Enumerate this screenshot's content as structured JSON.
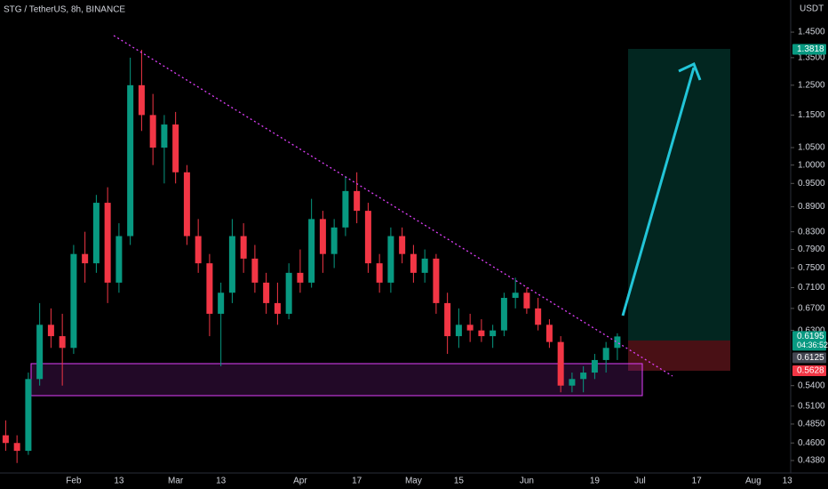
{
  "chart_data": {
    "type": "candlestick",
    "title": "STG / TetherUS, 8h, BINANCE",
    "y_axis_label": "USDT",
    "log_scale": true,
    "grid": false,
    "up_color": "#089981",
    "down_color": "#f23645",
    "categories": [
      null,
      null,
      null,
      null,
      null,
      null,
      "Feb",
      null,
      null,
      null,
      "13",
      null,
      null,
      null,
      null,
      "Mar",
      null,
      null,
      null,
      "13",
      null,
      null,
      null,
      null,
      null,
      null,
      "Apr",
      null,
      null,
      null,
      null,
      "17",
      null,
      null,
      null,
      null,
      "May",
      null,
      null,
      null,
      "15",
      null,
      null,
      null,
      null,
      null,
      "Jun",
      null,
      null,
      null,
      null,
      null,
      "19",
      null,
      null,
      null,
      "Jul",
      null,
      null,
      null,
      null,
      "17",
      null,
      null,
      null,
      null,
      "Aug",
      null,
      null,
      "13"
    ],
    "open": [
      0.47,
      0.46,
      0.45,
      0.55,
      0.64,
      0.62,
      0.6,
      0.78,
      0.76,
      0.9,
      0.72,
      0.82,
      1.25,
      1.15,
      1.05,
      1.12,
      0.98,
      0.82,
      0.76,
      0.66,
      0.7,
      0.82,
      0.77,
      0.72,
      0.68,
      0.66,
      0.74,
      0.72,
      0.86,
      0.78,
      0.84,
      0.93,
      0.88,
      0.76,
      0.72,
      0.82,
      0.78,
      0.74,
      0.77,
      0.68,
      0.62,
      0.64,
      0.63,
      0.62,
      0.63,
      0.69,
      0.7,
      0.67,
      0.64,
      0.61,
      0.54,
      0.55,
      0.56,
      0.58,
      0.6,
      null,
      null,
      null,
      null,
      null,
      null,
      null,
      null,
      null,
      null,
      null,
      null,
      null,
      null,
      null
    ],
    "high": [
      0.49,
      0.47,
      0.56,
      0.68,
      0.67,
      0.66,
      0.8,
      0.83,
      0.92,
      0.94,
      0.85,
      1.35,
      1.38,
      1.22,
      1.15,
      1.16,
      1.0,
      0.86,
      0.78,
      0.72,
      0.86,
      0.85,
      0.8,
      0.74,
      0.72,
      0.76,
      0.79,
      0.91,
      0.88,
      0.86,
      0.97,
      0.98,
      0.9,
      0.78,
      0.84,
      0.84,
      0.8,
      0.79,
      0.78,
      0.7,
      0.67,
      0.66,
      0.65,
      0.64,
      0.7,
      0.73,
      0.71,
      0.69,
      0.65,
      0.62,
      0.56,
      0.57,
      0.59,
      0.61,
      0.625,
      null,
      null,
      null,
      null,
      null,
      null,
      null,
      null,
      null,
      null,
      null,
      null,
      null,
      null,
      null
    ],
    "low": [
      0.45,
      0.435,
      0.445,
      0.54,
      0.6,
      0.54,
      0.59,
      0.72,
      0.74,
      0.68,
      0.7,
      0.8,
      1.1,
      1.0,
      0.95,
      0.95,
      0.8,
      0.74,
      0.62,
      0.57,
      0.68,
      0.74,
      0.7,
      0.66,
      0.64,
      0.65,
      0.7,
      0.71,
      0.74,
      0.75,
      0.82,
      0.85,
      0.74,
      0.7,
      0.7,
      0.76,
      0.72,
      0.72,
      0.66,
      0.59,
      0.6,
      0.61,
      0.61,
      0.6,
      0.62,
      0.67,
      0.66,
      0.63,
      0.6,
      0.53,
      0.53,
      0.53,
      0.55,
      0.56,
      0.58,
      null,
      null,
      null,
      null,
      null,
      null,
      null,
      null,
      null,
      null,
      null,
      null,
      null,
      null,
      null
    ],
    "close": [
      0.46,
      0.45,
      0.55,
      0.64,
      0.62,
      0.6,
      0.78,
      0.76,
      0.9,
      0.72,
      0.82,
      1.25,
      1.15,
      1.05,
      1.12,
      0.98,
      0.82,
      0.76,
      0.66,
      0.7,
      0.82,
      0.77,
      0.72,
      0.68,
      0.66,
      0.74,
      0.72,
      0.86,
      0.78,
      0.84,
      0.93,
      0.88,
      0.76,
      0.72,
      0.82,
      0.78,
      0.74,
      0.77,
      0.68,
      0.62,
      0.64,
      0.63,
      0.62,
      0.63,
      0.69,
      0.7,
      0.67,
      0.64,
      0.61,
      0.54,
      0.55,
      0.56,
      0.58,
      0.6,
      0.6195,
      null,
      null,
      null,
      null,
      null,
      null,
      null,
      null,
      null,
      null,
      null,
      null,
      null,
      null,
      null
    ],
    "ylim": [
      0.423,
      1.586
    ],
    "yticks": [
      {
        "value": 0.438,
        "label": "0.4380"
      },
      {
        "value": 0.46,
        "label": "0.4600"
      },
      {
        "value": 0.485,
        "label": "0.4850"
      },
      {
        "value": 0.51,
        "label": "0.5100"
      },
      {
        "value": 0.54,
        "label": "0.5400"
      },
      {
        "value": 0.63,
        "label": "0.6300"
      },
      {
        "value": 0.67,
        "label": "0.6700"
      },
      {
        "value": 0.71,
        "label": "0.7100"
      },
      {
        "value": 0.75,
        "label": "0.7500"
      },
      {
        "value": 0.79,
        "label": "0.7900"
      },
      {
        "value": 0.83,
        "label": "0.8300"
      },
      {
        "value": 0.89,
        "label": "0.8900"
      },
      {
        "value": 0.95,
        "label": "0.9500"
      },
      {
        "value": 1.0,
        "label": "1.0000"
      },
      {
        "value": 1.05,
        "label": "1.0500"
      },
      {
        "value": 1.15,
        "label": "1.1500"
      },
      {
        "value": 1.25,
        "label": "1.2500"
      },
      {
        "value": 1.35,
        "label": "1.3500"
      },
      {
        "value": 1.45,
        "label": "1.4500"
      }
    ],
    "price_tags": [
      {
        "value": 1.3818,
        "color": "#089981"
      },
      {
        "value": 0.6195,
        "color": "#089981",
        "sub": "04:36:52"
      },
      {
        "value": 0.6125,
        "color": "#434651"
      },
      {
        "value": 0.5628,
        "color": "#f23645"
      }
    ]
  }
}
